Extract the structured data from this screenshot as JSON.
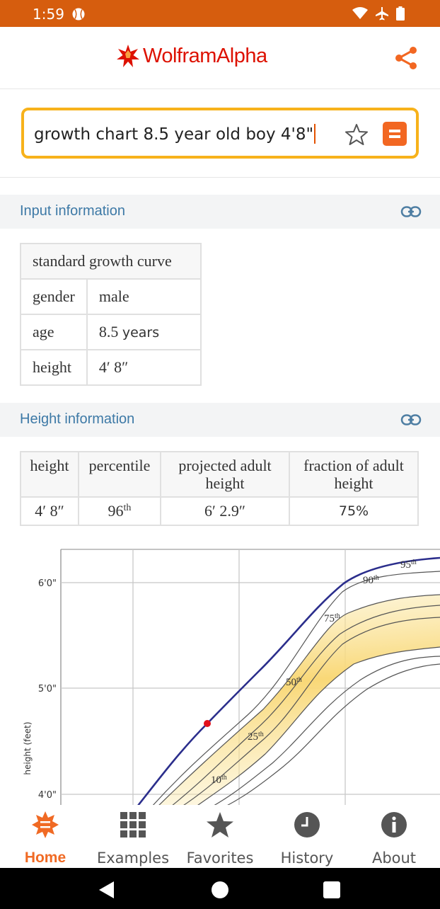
{
  "status_bar": {
    "time": "1:59"
  },
  "app": {
    "logo_text": "WolframAlpha"
  },
  "search": {
    "query": "growth chart 8.5 year old boy 4'8\""
  },
  "input_pod": {
    "title": "Input information",
    "header": "standard growth curve",
    "rows": [
      {
        "label": "gender",
        "value": "male"
      },
      {
        "label": "age",
        "value": "8.5",
        "unit": "years"
      },
      {
        "label": "height",
        "value": "4′ 8″"
      }
    ]
  },
  "height_pod": {
    "title": "Height information",
    "columns": [
      "height",
      "percentile",
      "projected adult height",
      "fraction of adult height"
    ],
    "row": {
      "height": "4′ 8″",
      "percentile": "96",
      "percentile_suffix": "th",
      "projected": "6′ 2.9″",
      "fraction": "75%"
    }
  },
  "chart_data": {
    "type": "line",
    "ylabel": "height (feet)",
    "y_ticks": [
      "4'0\"",
      "5'0\"",
      "6'0\""
    ],
    "percentile_labels": [
      "95th",
      "90th",
      "75th",
      "50th",
      "25th",
      "10th"
    ],
    "highlight_point": {
      "age_years": 8.5,
      "height_inches": 56
    },
    "colors": {
      "highlight_line": "#2b2e8c",
      "point": "#e3101b",
      "band": "#f9d877",
      "grid": "#c8c8c8"
    }
  },
  "bottom_nav": [
    {
      "label": "Home",
      "icon": "home-icon",
      "active": true
    },
    {
      "label": "Examples",
      "icon": "grid-icon",
      "active": false
    },
    {
      "label": "Favorites",
      "icon": "star-icon",
      "active": false
    },
    {
      "label": "History",
      "icon": "clock-icon",
      "active": false
    },
    {
      "label": "About",
      "icon": "info-icon",
      "active": false
    }
  ],
  "colors": {
    "brand": "#dd1100",
    "accent": "#f26722",
    "status_bar": "#d65d0e",
    "link": "#3d79a6"
  }
}
